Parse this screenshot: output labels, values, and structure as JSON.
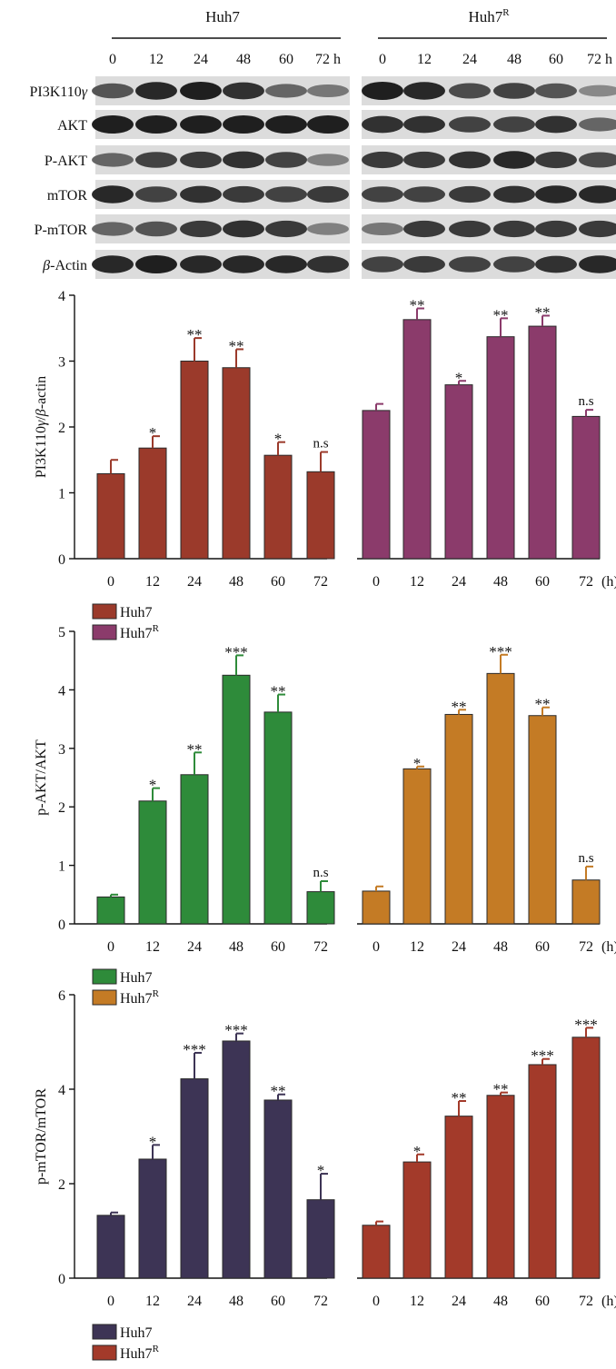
{
  "blot": {
    "groups": [
      {
        "label": "Huh7",
        "sup": ""
      },
      {
        "label": "Huh7",
        "sup": "R"
      }
    ],
    "timepoints": [
      "0",
      "12",
      "24",
      "48",
      "60",
      "72 h"
    ],
    "rows": [
      {
        "label": "PI3K110",
        "greek": "γ",
        "prefix": "",
        "intensities": [
          [
            0.7,
            0.95,
            1.0,
            0.9,
            0.6,
            0.5
          ],
          [
            1.0,
            0.95,
            0.75,
            0.8,
            0.7,
            0.4
          ]
        ]
      },
      {
        "label": "AKT",
        "greek": "",
        "prefix": "",
        "intensities": [
          [
            1.0,
            1.0,
            1.0,
            1.0,
            1.0,
            1.0
          ],
          [
            0.9,
            0.9,
            0.8,
            0.8,
            0.9,
            0.6
          ]
        ]
      },
      {
        "label": "P-AKT",
        "greek": "",
        "prefix": "",
        "intensities": [
          [
            0.6,
            0.8,
            0.85,
            0.9,
            0.8,
            0.45
          ],
          [
            0.85,
            0.85,
            0.9,
            0.95,
            0.85,
            0.75
          ]
        ]
      },
      {
        "label": "mTOR",
        "greek": "",
        "prefix": "",
        "intensities": [
          [
            0.95,
            0.8,
            0.9,
            0.85,
            0.8,
            0.85
          ],
          [
            0.8,
            0.8,
            0.85,
            0.9,
            0.95,
            0.95
          ]
        ]
      },
      {
        "label": "P-mTOR",
        "greek": "",
        "prefix": "",
        "intensities": [
          [
            0.6,
            0.7,
            0.85,
            0.9,
            0.85,
            0.45
          ],
          [
            0.5,
            0.85,
            0.85,
            0.85,
            0.85,
            0.85
          ]
        ]
      },
      {
        "label": "-Actin",
        "greek": "",
        "prefix": "β",
        "intensities": [
          [
            0.95,
            1.0,
            0.95,
            0.95,
            0.95,
            0.9
          ],
          [
            0.8,
            0.85,
            0.8,
            0.8,
            0.9,
            0.95
          ]
        ]
      }
    ]
  },
  "chart_data": [
    {
      "type": "bar",
      "ylabel_parts": [
        "PI3K110",
        "γ",
        "/",
        "β",
        "-actin"
      ],
      "ylim": [
        0,
        4
      ],
      "yticks": [
        0,
        1,
        2,
        3,
        4
      ],
      "categories": [
        "0",
        "12",
        "24",
        "48",
        "60",
        "72"
      ],
      "unit_label": "(h)",
      "series": [
        {
          "name": "Huh7",
          "sup": "",
          "color": "#9b3a2b",
          "values": [
            1.29,
            1.68,
            3.0,
            2.9,
            1.57,
            1.32
          ],
          "errors": [
            0.21,
            0.18,
            0.35,
            0.28,
            0.2,
            0.3
          ],
          "sig": [
            "",
            "*",
            "**",
            "**",
            "*",
            "n.s"
          ]
        },
        {
          "name": "Huh7",
          "sup": "R",
          "color": "#8b3b6b",
          "values": [
            2.25,
            3.63,
            2.64,
            3.37,
            3.53,
            2.16
          ],
          "errors": [
            0.1,
            0.17,
            0.06,
            0.28,
            0.16,
            0.1
          ],
          "sig": [
            "",
            "**",
            "*",
            "**",
            "**",
            "n.s"
          ]
        }
      ]
    },
    {
      "type": "bar",
      "ylabel_parts": [
        "p-AKT/AKT"
      ],
      "ylim": [
        0,
        5
      ],
      "yticks": [
        0,
        1,
        2,
        3,
        4,
        5
      ],
      "categories": [
        "0",
        "12",
        "24",
        "48",
        "60",
        "72"
      ],
      "unit_label": "(h)",
      "series": [
        {
          "name": "Huh7",
          "sup": "",
          "color": "#2e8b3a",
          "values": [
            0.46,
            2.1,
            2.55,
            4.25,
            3.62,
            0.55
          ],
          "errors": [
            0.04,
            0.22,
            0.38,
            0.34,
            0.3,
            0.18
          ],
          "sig": [
            "",
            "*",
            "**",
            "***",
            "**",
            "n.s"
          ]
        },
        {
          "name": "Huh7",
          "sup": "R",
          "color": "#c47b25",
          "values": [
            0.56,
            2.65,
            3.58,
            4.28,
            3.56,
            0.75
          ],
          "errors": [
            0.08,
            0.04,
            0.08,
            0.32,
            0.14,
            0.23
          ],
          "sig": [
            "",
            "*",
            "**",
            "***",
            "**",
            "n.s"
          ]
        }
      ]
    },
    {
      "type": "bar",
      "ylabel_parts": [
        "p-mTOR/mTOR"
      ],
      "ylim": [
        0,
        6
      ],
      "yticks": [
        0,
        2,
        4,
        6
      ],
      "categories": [
        "0",
        "12",
        "24",
        "48",
        "60",
        "72"
      ],
      "unit_label": "(h)",
      "series": [
        {
          "name": "Huh7",
          "sup": "",
          "color": "#3d3455",
          "values": [
            1.33,
            2.52,
            4.22,
            5.02,
            3.77,
            1.66
          ],
          "errors": [
            0.06,
            0.3,
            0.55,
            0.16,
            0.12,
            0.55
          ],
          "sig": [
            "",
            "*",
            "***",
            "***",
            "**",
            "*"
          ]
        },
        {
          "name": "Huh7",
          "sup": "R",
          "color": "#a33a2a",
          "values": [
            1.12,
            2.46,
            3.43,
            3.87,
            4.52,
            5.1
          ],
          "errors": [
            0.08,
            0.16,
            0.32,
            0.06,
            0.12,
            0.2
          ],
          "sig": [
            "",
            "*",
            "**",
            "**",
            "***",
            "***"
          ]
        }
      ]
    }
  ]
}
